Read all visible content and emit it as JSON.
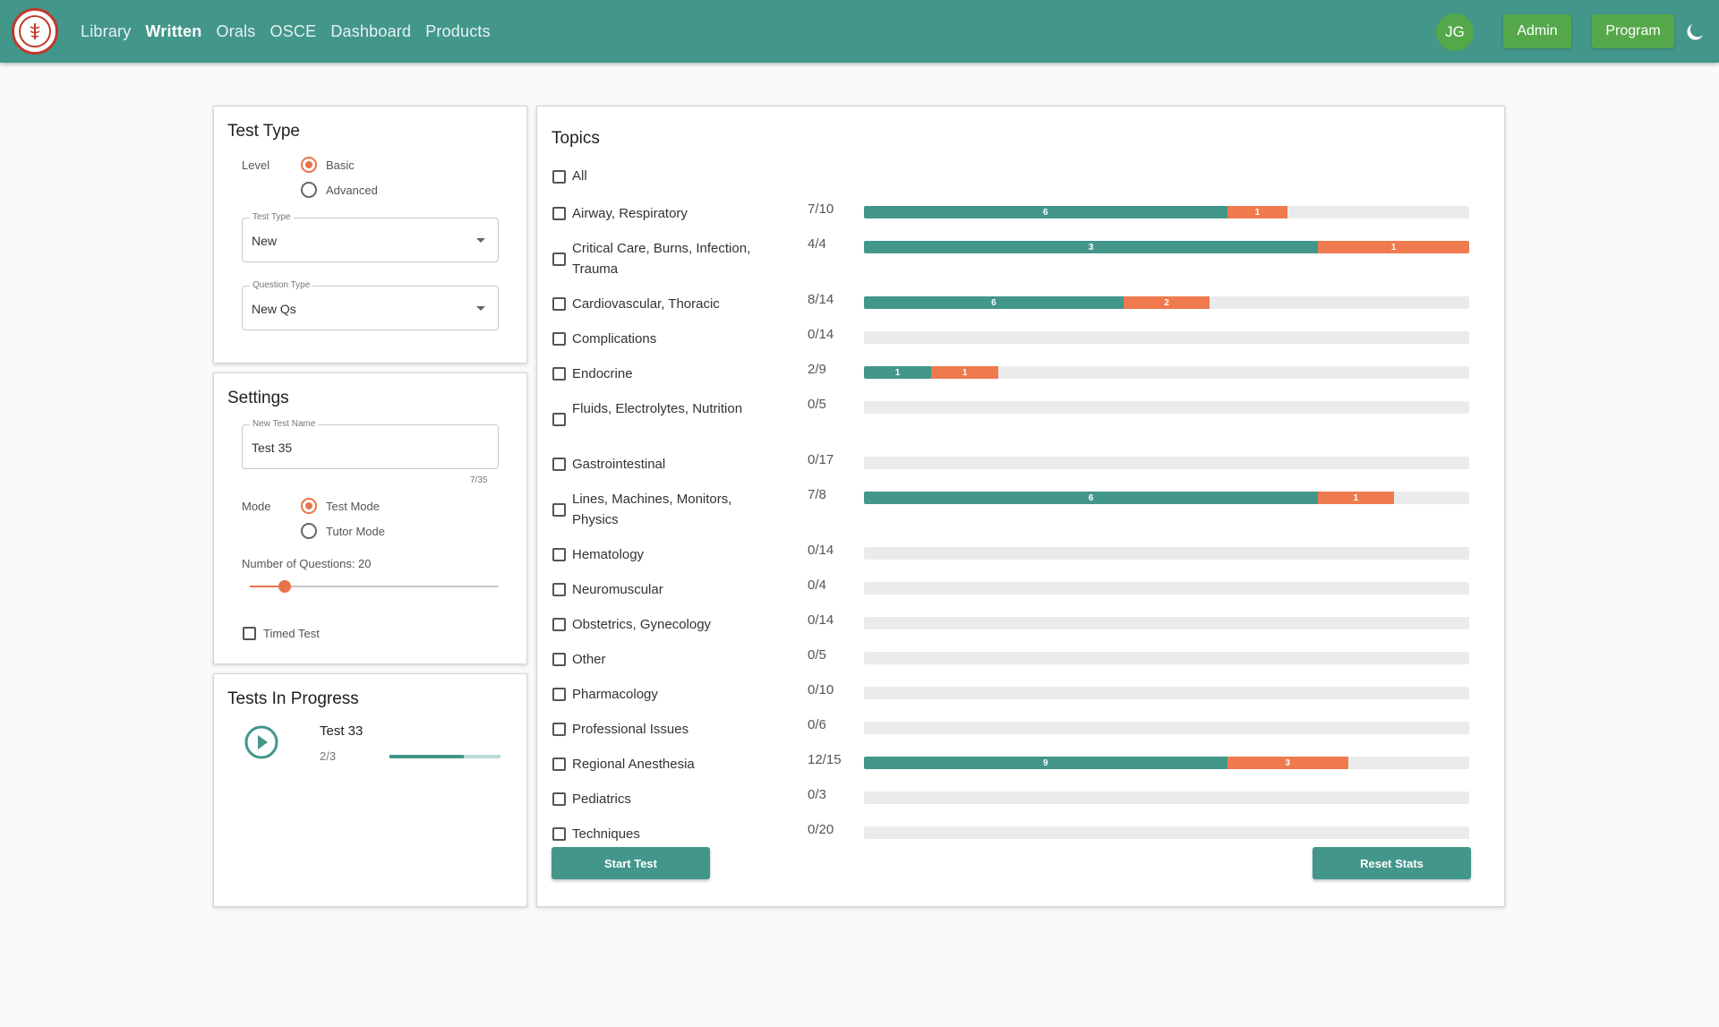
{
  "header": {
    "nav": [
      "Library",
      "Written",
      "Orals",
      "OSCE",
      "Dashboard",
      "Products"
    ],
    "active_nav": "Written",
    "avatar_initials": "JG",
    "admin_label": "Admin",
    "program_label": "Program",
    "theme_icon": "moon-icon"
  },
  "test_type": {
    "title": "Test Type",
    "level_label": "Level",
    "level_options": [
      "Basic",
      "Advanced"
    ],
    "level_selected": "Basic",
    "test_type_legend": "Test Type",
    "test_type_value": "New",
    "question_type_legend": "Question Type",
    "question_type_value": "New Qs"
  },
  "settings": {
    "title": "Settings",
    "test_name_legend": "New Test Name",
    "test_name_value": "Test 35",
    "char_count": "7/35",
    "mode_label": "Mode",
    "mode_options": [
      "Test Mode",
      "Tutor Mode"
    ],
    "mode_selected": "Test Mode",
    "num_questions_label": "Number of Questions: 20",
    "num_questions_fraction": 0.14,
    "timed_test_label": "Timed Test"
  },
  "in_progress": {
    "title": "Tests In Progress",
    "tests": [
      {
        "name": "Test 33",
        "progress_text": "2/3",
        "progress_fraction": 0.667
      }
    ]
  },
  "topics": {
    "title": "Topics",
    "all_label": "All",
    "items": [
      {
        "name": "Airway, Respiratory",
        "count": "7/10",
        "total": 10,
        "green": 6,
        "orange": 1
      },
      {
        "name": "Critical Care, Burns, Infection, Trauma",
        "count": "4/4",
        "total": 4,
        "green": 3,
        "orange": 1
      },
      {
        "name": "Cardiovascular, Thoracic",
        "count": "8/14",
        "total": 14,
        "green": 6,
        "orange": 2
      },
      {
        "name": "Complications",
        "count": "0/14",
        "total": 14,
        "green": 0,
        "orange": 0
      },
      {
        "name": "Endocrine",
        "count": "2/9",
        "total": 9,
        "green": 1,
        "orange": 1
      },
      {
        "name": "Fluids, Electrolytes, Nutrition",
        "count": "0/5",
        "total": 5,
        "green": 0,
        "orange": 0
      },
      {
        "name": "Gastrointestinal",
        "count": "0/17",
        "total": 17,
        "green": 0,
        "orange": 0
      },
      {
        "name": "Lines, Machines, Monitors, Physics",
        "count": "7/8",
        "total": 8,
        "green": 6,
        "orange": 1
      },
      {
        "name": "Hematology",
        "count": "0/14",
        "total": 14,
        "green": 0,
        "orange": 0
      },
      {
        "name": "Neuromuscular",
        "count": "0/4",
        "total": 4,
        "green": 0,
        "orange": 0
      },
      {
        "name": "Obstetrics, Gynecology",
        "count": "0/14",
        "total": 14,
        "green": 0,
        "orange": 0
      },
      {
        "name": "Other",
        "count": "0/5",
        "total": 5,
        "green": 0,
        "orange": 0
      },
      {
        "name": "Pharmacology",
        "count": "0/10",
        "total": 10,
        "green": 0,
        "orange": 0
      },
      {
        "name": "Professional Issues",
        "count": "0/6",
        "total": 6,
        "green": 0,
        "orange": 0
      },
      {
        "name": "Regional Anesthesia",
        "count": "12/15",
        "total": 15,
        "green": 9,
        "orange": 3
      },
      {
        "name": "Pediatrics",
        "count": "0/3",
        "total": 3,
        "green": 0,
        "orange": 0
      },
      {
        "name": "Techniques",
        "count": "0/20",
        "total": 20,
        "green": 0,
        "orange": 0
      }
    ],
    "start_label": "Start Test",
    "reset_label": "Reset Stats"
  },
  "colors": {
    "teal": "#43968a",
    "orange": "#ee7a4d",
    "green": "#55a84a"
  }
}
